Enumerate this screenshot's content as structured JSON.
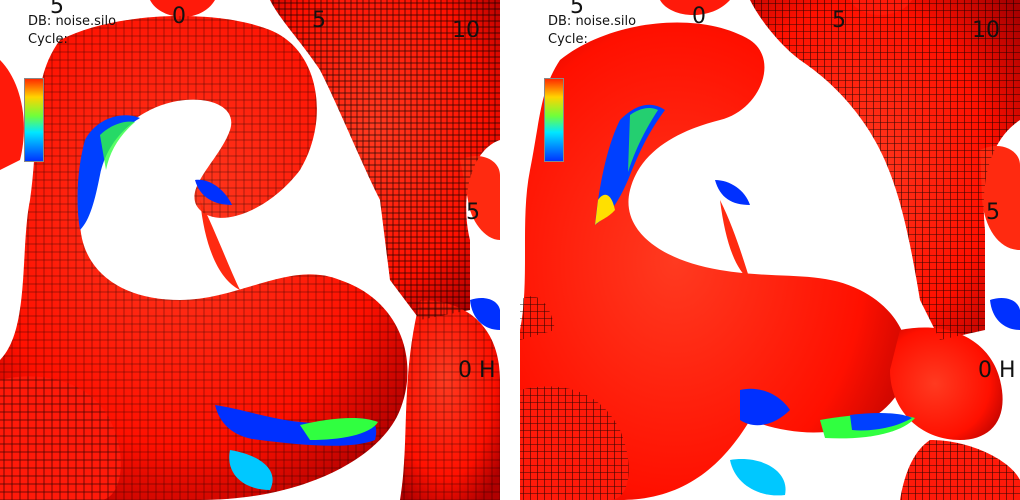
{
  "panels": [
    {
      "id": "left",
      "database_label": "DB: noise.silo",
      "cycle_label": "Cycle:",
      "axis_labels": {
        "top_a": "5",
        "top_b": "0",
        "top_c": "5",
        "right_top": "10",
        "right_mid": "5",
        "right_low": "0 H"
      }
    },
    {
      "id": "right",
      "database_label": "DB: noise.silo",
      "cycle_label": "Cycle:",
      "axis_labels": {
        "top_a": "5",
        "top_b": "0",
        "top_c": "5",
        "right_top": "10",
        "right_mid": "5",
        "right_low": "0 H"
      }
    }
  ],
  "colors": {
    "surface": "#ff1a0a",
    "surface_shade": "#c00000",
    "wire": "#000000",
    "patch_blue": "#0030ff",
    "patch_cyan": "#00e0ff",
    "patch_green": "#30ff40",
    "patch_yellow": "#ffe000"
  }
}
